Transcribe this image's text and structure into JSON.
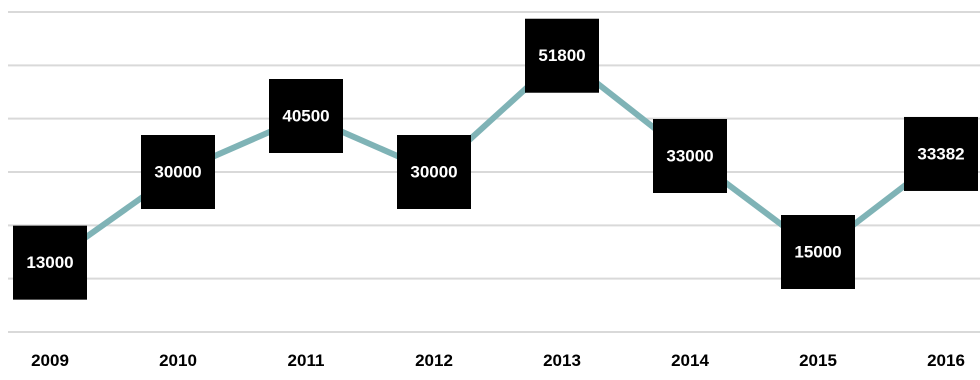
{
  "chart_data": {
    "type": "line",
    "title": "",
    "xlabel": "",
    "ylabel": "",
    "categories": [
      "2009",
      "2010",
      "2011",
      "2012",
      "2013",
      "2014",
      "2015",
      "2016"
    ],
    "series": [
      {
        "values": [
          13000,
          30000,
          40500,
          30000,
          51800,
          33000,
          15000,
          33382
        ]
      }
    ],
    "ylim": [
      0,
      60000
    ],
    "grid": true,
    "legend": "none",
    "data_labels": true,
    "colors": {
      "line": "#7fb3b6",
      "marker": "#7fb3b6",
      "label_background": "#000000",
      "label_text": "#ffffff",
      "grid": "#d9d9d9"
    }
  }
}
